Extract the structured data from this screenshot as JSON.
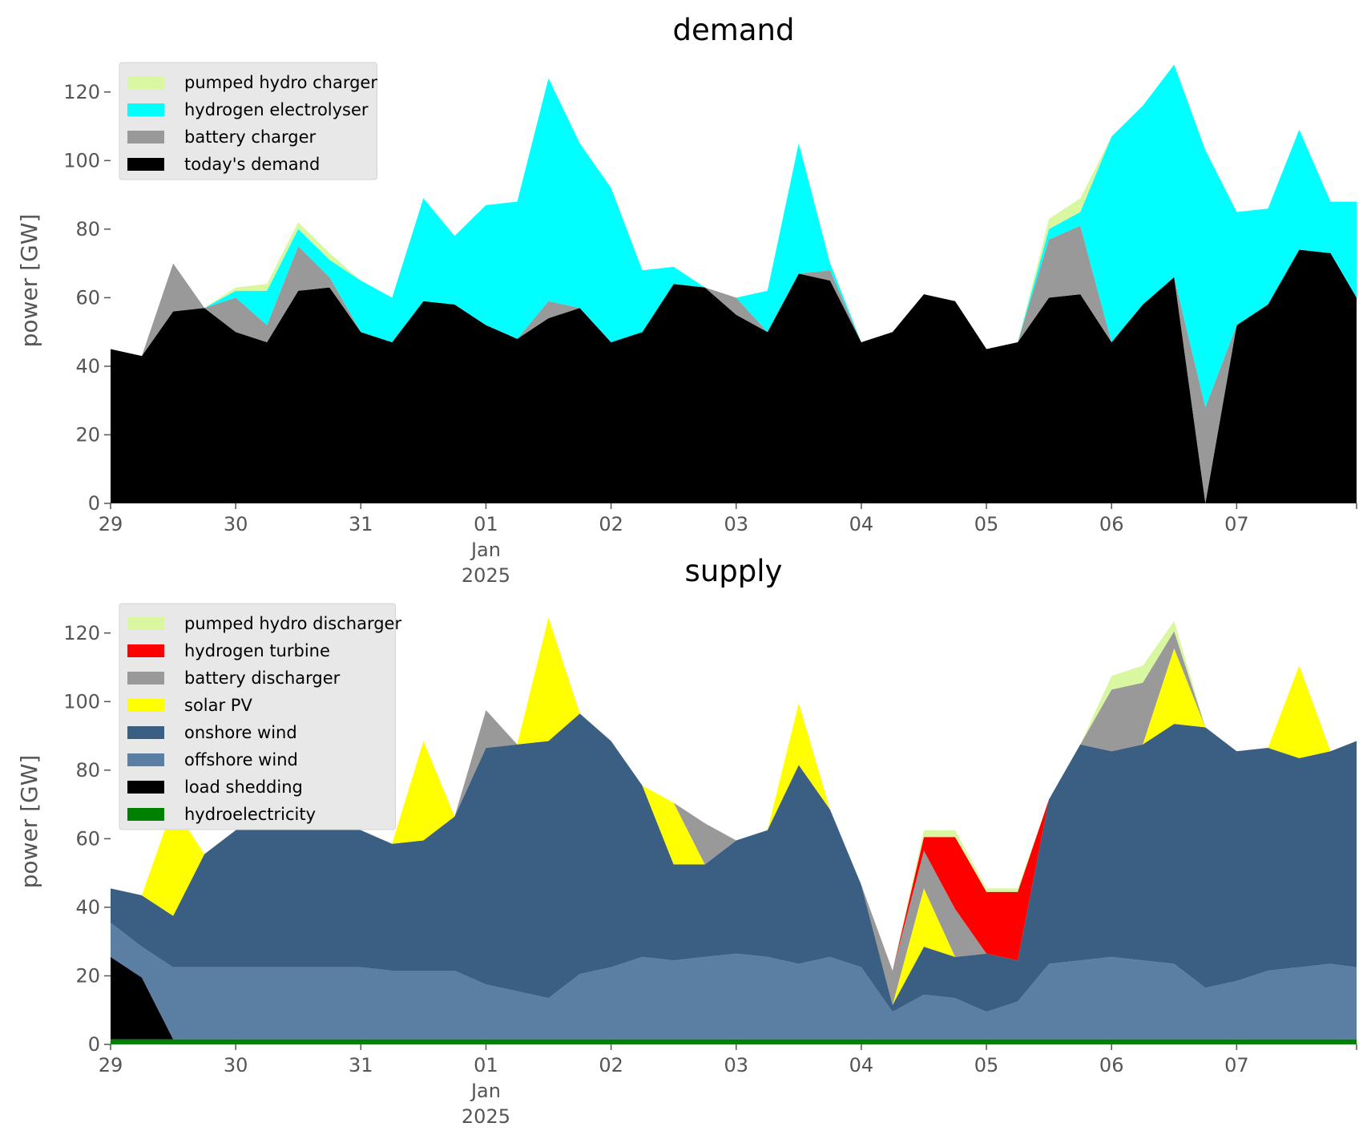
{
  "chart_data": [
    {
      "type": "area",
      "stacked": true,
      "title": "demand",
      "ylabel": "power [GW]",
      "xlabel": "",
      "ylim": [
        0,
        130
      ],
      "yticks": [
        0,
        20,
        40,
        60,
        80,
        100,
        120
      ],
      "grid": false,
      "legend_position": "top-left",
      "xlim": [
        "2024-12-29T00:00",
        "2025-01-07T23:00"
      ],
      "xticks": [
        {
          "at": "2024-12-29",
          "lines": [
            "29"
          ]
        },
        {
          "at": "2024-12-30",
          "lines": [
            "30"
          ]
        },
        {
          "at": "2024-12-31",
          "lines": [
            "31"
          ]
        },
        {
          "at": "2025-01-01",
          "lines": [
            "01",
            "Jan",
            "2025"
          ]
        },
        {
          "at": "2025-01-02",
          "lines": [
            "02"
          ]
        },
        {
          "at": "2025-01-03",
          "lines": [
            "03"
          ]
        },
        {
          "at": "2025-01-04",
          "lines": [
            "04"
          ]
        },
        {
          "at": "2025-01-05",
          "lines": [
            "05"
          ]
        },
        {
          "at": "2025-01-06",
          "lines": [
            "06"
          ]
        },
        {
          "at": "2025-01-07",
          "lines": [
            "07"
          ]
        }
      ],
      "x": [
        "2024-12-29T00:00",
        "2024-12-29T06:00",
        "2024-12-29T12:00",
        "2024-12-29T18:00",
        "2024-12-30T00:00",
        "2024-12-30T06:00",
        "2024-12-30T12:00",
        "2024-12-30T18:00",
        "2024-12-31T00:00",
        "2024-12-31T06:00",
        "2024-12-31T12:00",
        "2024-12-31T18:00",
        "2025-01-01T00:00",
        "2025-01-01T06:00",
        "2025-01-01T12:00",
        "2025-01-01T18:00",
        "2025-01-02T00:00",
        "2025-01-02T06:00",
        "2025-01-02T12:00",
        "2025-01-02T18:00",
        "2025-01-03T00:00",
        "2025-01-03T06:00",
        "2025-01-03T12:00",
        "2025-01-03T18:00",
        "2025-01-04T00:00",
        "2025-01-04T06:00",
        "2025-01-04T12:00",
        "2025-01-04T18:00",
        "2025-01-05T00:00",
        "2025-01-05T06:00",
        "2025-01-05T12:00",
        "2025-01-05T18:00",
        "2025-01-06T00:00",
        "2025-01-06T06:00",
        "2025-01-06T12:00",
        "2025-01-06T18:00",
        "2025-01-07T00:00",
        "2025-01-07T06:00",
        "2025-01-07T12:00",
        "2025-01-07T18:00",
        "2025-01-07T23:00"
      ],
      "series": [
        {
          "name": "today's demand",
          "color": "#000000",
          "values": [
            45,
            43,
            56,
            57,
            50,
            47,
            62,
            63,
            50,
            47,
            59,
            58,
            52,
            48,
            54,
            57,
            47,
            50,
            64,
            63,
            55,
            50,
            67,
            65,
            47,
            50,
            61,
            59,
            45,
            47,
            60,
            61,
            47,
            58,
            66,
            0,
            52,
            58,
            74,
            73,
            60
          ]
        },
        {
          "name": "battery charger",
          "color": "#999999",
          "values": [
            0,
            0,
            14,
            0,
            10,
            5,
            13,
            3,
            0,
            0,
            0,
            0,
            0,
            0,
            5,
            0,
            0,
            0,
            0,
            0,
            5,
            0,
            0,
            3,
            0,
            0,
            0,
            0,
            0,
            0,
            17,
            20,
            0,
            0,
            0,
            28,
            0,
            0,
            0,
            0,
            0
          ]
        },
        {
          "name": "hydrogen electrolyser",
          "color": "#00ffff",
          "values": [
            0,
            0,
            0,
            0,
            2,
            10,
            5,
            5,
            15,
            13,
            30,
            20,
            35,
            40,
            65,
            48,
            45,
            18,
            5,
            0,
            0,
            12,
            38,
            2,
            0,
            0,
            0,
            0,
            0,
            0,
            3,
            4,
            60,
            58,
            62,
            75,
            33,
            28,
            35,
            15,
            28
          ]
        },
        {
          "name": "pumped hydro charger",
          "color": "#d9f7a1",
          "values": [
            0,
            0,
            0,
            0,
            1,
            2,
            2,
            2,
            0,
            0,
            0,
            0,
            0,
            0,
            0,
            0,
            0,
            0,
            0,
            0,
            0,
            0,
            0,
            0,
            0,
            0,
            0,
            0,
            0,
            0,
            3,
            4,
            0,
            0,
            0,
            0,
            0,
            0,
            0,
            0,
            0
          ]
        }
      ],
      "legend": [
        "pumped hydro charger",
        "hydrogen electrolyser",
        "battery charger",
        "today's demand"
      ]
    },
    {
      "type": "area",
      "stacked": true,
      "title": "supply",
      "ylabel": "power [GW]",
      "xlabel": "",
      "ylim": [
        0,
        130
      ],
      "yticks": [
        0,
        20,
        40,
        60,
        80,
        100,
        120
      ],
      "grid": false,
      "legend_position": "top-left",
      "xlim": [
        "2024-12-29T00:00",
        "2025-01-07T23:00"
      ],
      "xticks": [
        {
          "at": "2024-12-29",
          "lines": [
            "29"
          ]
        },
        {
          "at": "2024-12-30",
          "lines": [
            "30"
          ]
        },
        {
          "at": "2024-12-31",
          "lines": [
            "31"
          ]
        },
        {
          "at": "2025-01-01",
          "lines": [
            "01",
            "Jan",
            "2025"
          ]
        },
        {
          "at": "2025-01-02",
          "lines": [
            "02"
          ]
        },
        {
          "at": "2025-01-03",
          "lines": [
            "03"
          ]
        },
        {
          "at": "2025-01-04",
          "lines": [
            "04"
          ]
        },
        {
          "at": "2025-01-05",
          "lines": [
            "05"
          ]
        },
        {
          "at": "2025-01-06",
          "lines": [
            "06"
          ]
        },
        {
          "at": "2025-01-07",
          "lines": [
            "07"
          ]
        }
      ],
      "x": [
        "2024-12-29T00:00",
        "2024-12-29T06:00",
        "2024-12-29T12:00",
        "2024-12-29T18:00",
        "2024-12-30T00:00",
        "2024-12-30T06:00",
        "2024-12-30T12:00",
        "2024-12-30T18:00",
        "2024-12-31T00:00",
        "2024-12-31T06:00",
        "2024-12-31T12:00",
        "2024-12-31T18:00",
        "2025-01-01T00:00",
        "2025-01-01T06:00",
        "2025-01-01T12:00",
        "2025-01-01T18:00",
        "2025-01-02T00:00",
        "2025-01-02T06:00",
        "2025-01-02T12:00",
        "2025-01-02T18:00",
        "2025-01-03T00:00",
        "2025-01-03T06:00",
        "2025-01-03T12:00",
        "2025-01-03T18:00",
        "2025-01-04T00:00",
        "2025-01-04T06:00",
        "2025-01-04T12:00",
        "2025-01-04T18:00",
        "2025-01-05T00:00",
        "2025-01-05T06:00",
        "2025-01-05T12:00",
        "2025-01-05T18:00",
        "2025-01-06T00:00",
        "2025-01-06T06:00",
        "2025-01-06T12:00",
        "2025-01-06T18:00",
        "2025-01-07T00:00",
        "2025-01-07T06:00",
        "2025-01-07T12:00",
        "2025-01-07T18:00",
        "2025-01-07T23:00"
      ],
      "series": [
        {
          "name": "hydroelectricity",
          "color": "#008000",
          "values": [
            1.5,
            1.5,
            1.5,
            1.5,
            1.5,
            1.5,
            1.5,
            1.5,
            1.5,
            1.5,
            1.5,
            1.5,
            1.5,
            1.5,
            1.5,
            1.5,
            1.5,
            1.5,
            1.5,
            1.5,
            1.5,
            1.5,
            1.5,
            1.5,
            1.5,
            1.5,
            1.5,
            1.5,
            1.5,
            1.5,
            1.5,
            1.5,
            1.5,
            1.5,
            1.5,
            1.5,
            1.5,
            1.5,
            1.5,
            1.5,
            1.5
          ]
        },
        {
          "name": "load shedding",
          "color": "#000000",
          "values": [
            24,
            18,
            0,
            0,
            0,
            0,
            0,
            0,
            0,
            0,
            0,
            0,
            0,
            0,
            0,
            0,
            0,
            0,
            0,
            0,
            0,
            0,
            0,
            0,
            0,
            0,
            0,
            0,
            0,
            0,
            0,
            0,
            0,
            0,
            0,
            0,
            0,
            0,
            0,
            0,
            0
          ]
        },
        {
          "name": "offshore wind",
          "color": "#5b7fa3",
          "values": [
            10,
            9,
            21,
            21,
            21,
            21,
            21,
            21,
            21,
            20,
            20,
            20,
            16,
            14,
            12,
            19,
            21,
            24,
            23,
            24,
            25,
            24,
            22,
            24,
            21,
            8,
            13,
            12,
            8,
            11,
            22,
            23,
            24,
            23,
            22,
            15,
            17,
            20,
            21,
            22,
            21
          ]
        },
        {
          "name": "onshore wind",
          "color": "#3b5f82",
          "values": [
            10,
            15,
            15,
            33,
            40,
            42,
            45,
            41,
            40,
            37,
            38,
            45,
            69,
            72,
            75,
            76,
            66,
            50,
            28,
            27,
            33,
            37,
            58,
            43,
            24,
            2,
            14,
            12,
            17,
            12,
            48,
            63,
            60,
            63,
            70,
            76,
            67,
            65,
            61,
            62,
            66
          ]
        },
        {
          "name": "solar PV",
          "color": "#ffff00",
          "values": [
            0,
            0,
            32,
            0,
            0,
            0,
            10,
            0,
            0,
            0,
            29,
            0,
            0,
            0,
            36,
            0,
            0,
            0,
            18,
            0,
            0,
            0,
            18,
            0,
            0,
            0,
            17,
            0,
            0,
            0,
            0,
            0,
            0,
            0,
            22,
            0,
            0,
            0,
            27,
            0,
            0
          ]
        },
        {
          "name": "battery discharger",
          "color": "#999999",
          "values": [
            0,
            0,
            0,
            0,
            0,
            0,
            0,
            0,
            0,
            0,
            0,
            0,
            11,
            0,
            0,
            0,
            0,
            0,
            0,
            12,
            0,
            0,
            0,
            0,
            0,
            10,
            11,
            14,
            0,
            0,
            0,
            0,
            18,
            18,
            5,
            0,
            0,
            0,
            0,
            0,
            0
          ]
        },
        {
          "name": "hydrogen turbine",
          "color": "#ff0000",
          "values": [
            0,
            0,
            0,
            0,
            0,
            0,
            0,
            0,
            0,
            0,
            0,
            0,
            0,
            0,
            0,
            0,
            0,
            0,
            0,
            0,
            0,
            0,
            0,
            0,
            0,
            0,
            4,
            21,
            18,
            20,
            0,
            0,
            0,
            0,
            0,
            0,
            0,
            0,
            0,
            0,
            0
          ]
        },
        {
          "name": "pumped hydro discharger",
          "color": "#d9f7a1",
          "values": [
            0,
            0,
            0,
            0,
            0,
            0,
            0,
            0,
            0,
            0,
            0,
            0,
            0,
            0,
            0,
            0,
            0,
            0,
            0,
            0,
            0,
            0,
            0,
            0,
            0,
            0,
            2,
            2,
            1,
            1,
            0,
            0,
            4,
            5,
            3,
            0,
            0,
            0,
            0,
            0,
            0
          ]
        }
      ],
      "legend": [
        "pumped hydro discharger",
        "hydrogen turbine",
        "battery discharger",
        "solar PV",
        "onshore wind",
        "offshore wind",
        "load shedding",
        "hydroelectricity"
      ]
    }
  ]
}
